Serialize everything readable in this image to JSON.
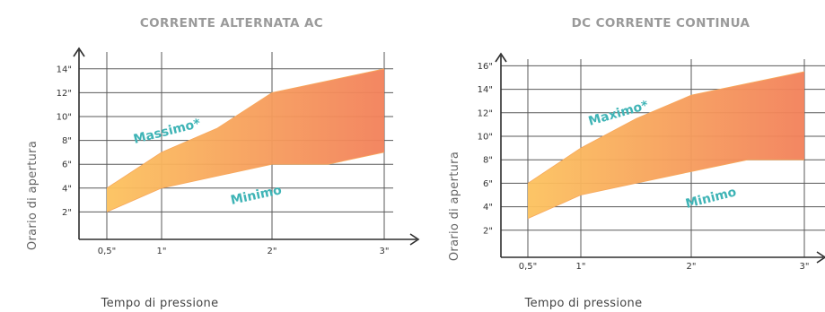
{
  "chart_data": [
    {
      "type": "area",
      "title": "CORRENTE ALTERNATA AC",
      "xlabel": "Tempo di pressione",
      "ylabel": "Orario di apertura",
      "x_ticks": [
        "0,5\"",
        "1\"",
        "2\"",
        "3\""
      ],
      "x_values": [
        0.5,
        1,
        2,
        3
      ],
      "y_ticks": [
        "2\"",
        "4\"",
        "6\"",
        "8\"",
        "10\"",
        "12\"",
        "14\""
      ],
      "y_tick_values": [
        2,
        4,
        6,
        8,
        10,
        12,
        14
      ],
      "ylim": [
        0,
        15
      ],
      "xlim": [
        0.3,
        3.3
      ],
      "series": [
        {
          "name": "Massimo*",
          "x": [
            0.5,
            1,
            1.5,
            2,
            2.5,
            3
          ],
          "values": [
            4,
            7,
            9,
            12,
            13,
            14
          ]
        },
        {
          "name": "Minimo",
          "x": [
            0.5,
            1,
            1.5,
            2,
            2.5,
            3
          ],
          "values": [
            2,
            4,
            5,
            6,
            6,
            7
          ]
        }
      ],
      "annotations": [
        "Massimo*",
        "Minimo"
      ],
      "grid": true,
      "colors": {
        "fill_light": "#fcc25e",
        "fill_dark": "#f2805a",
        "annotation": "#3fb4b6"
      }
    },
    {
      "type": "area",
      "title": "DC CORRENTE CONTINUA",
      "xlabel": "Tempo di pressione",
      "ylabel": "Orario di apertura",
      "x_ticks": [
        "0,5\"",
        "1\"",
        "2\"",
        "3\""
      ],
      "x_values": [
        0.5,
        1,
        2,
        3
      ],
      "y_ticks": [
        "2\"",
        "4\"",
        "6\"",
        "8\"",
        "10\"",
        "12\"",
        "14\"",
        "16\""
      ],
      "y_tick_values": [
        2,
        4,
        6,
        8,
        10,
        12,
        14,
        16
      ],
      "ylim": [
        0,
        17
      ],
      "xlim": [
        0.3,
        3.3
      ],
      "series": [
        {
          "name": "Maximo*",
          "x": [
            0.5,
            1,
            1.5,
            2,
            2.5,
            3
          ],
          "values": [
            6,
            9,
            11.5,
            13.5,
            14.5,
            15.5
          ]
        },
        {
          "name": "Minimo",
          "x": [
            0.5,
            1,
            1.5,
            2,
            2.5,
            3
          ],
          "values": [
            3,
            5,
            6,
            7,
            8,
            8
          ]
        }
      ],
      "annotations": [
        "Maximo*",
        "Minimo"
      ],
      "grid": true,
      "colors": {
        "fill_light": "#fcc25e",
        "fill_dark": "#f2805a",
        "annotation": "#3fb4b6"
      }
    }
  ]
}
